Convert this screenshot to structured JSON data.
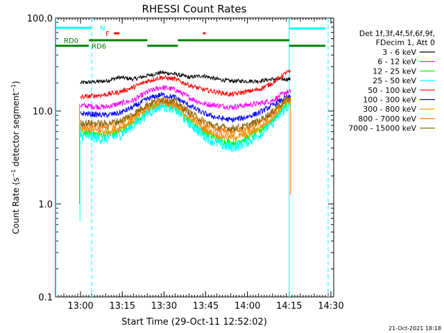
{
  "chart_data": {
    "type": "line",
    "title": "RHESSI Count Rates",
    "xlabel": "Start Time (29-Oct-11 12:52:02)",
    "ylabel_main": "Count Rate (s",
    "ylabel_sup1": "−1",
    "ylabel_mid": " detector segment",
    "ylabel_sup2": "−1",
    "ylabel_end": ")",
    "y_scale": "log",
    "ylim": [
      0.1,
      100.0
    ],
    "xlim_minutes": [
      "12:52",
      "14:32"
    ],
    "x_ticks": [
      {
        "t": 781,
        "label": "13:00"
      },
      {
        "t": 796,
        "label": "13:15"
      },
      {
        "t": 811,
        "label": "13:30"
      },
      {
        "t": 826,
        "label": "13:45"
      },
      {
        "t": 841,
        "label": "14:00"
      },
      {
        "t": 856,
        "label": "14:15"
      },
      {
        "t": 871,
        "label": "14:30"
      }
    ],
    "y_ticks": [
      {
        "v": 100,
        "label": "100.0"
      },
      {
        "v": 10,
        "label": "10.0"
      },
      {
        "v": 1,
        "label": "1.0"
      },
      {
        "v": 0.1,
        "label": "0.1"
      }
    ],
    "legend_title_1": "Det 1f,3f,4f,5f,6f,9f,",
    "legend_title_2": "FDecim 1, Att 0",
    "legend_placement": "right",
    "series": [
      {
        "name": "3 - 6 keV",
        "color": "#000000",
        "x": [
          "13:00",
          "13:10",
          "13:15",
          "13:20",
          "13:25",
          "13:30",
          "13:35",
          "13:40",
          "13:45",
          "13:50",
          "13:55",
          "14:00",
          "14:05",
          "14:10",
          "14:15"
        ],
        "values": [
          20,
          21,
          23,
          22,
          24,
          26,
          25,
          23,
          24,
          22,
          21,
          21,
          21,
          22,
          22
        ]
      },
      {
        "name": "6 - 12 keV",
        "color": "#ff00ff",
        "x": [
          "13:00",
          "13:10",
          "13:15",
          "13:20",
          "13:25",
          "13:30",
          "13:35",
          "13:40",
          "13:45",
          "13:50",
          "13:55",
          "14:00",
          "14:05",
          "14:10",
          "14:15"
        ],
        "values": [
          11.5,
          11,
          12,
          13,
          16,
          18,
          17,
          14,
          12,
          11.5,
          11,
          11.5,
          12,
          13,
          16
        ]
      },
      {
        "name": "12 - 25 keV",
        "color": "#00ff00",
        "x": [
          "13:00",
          "13:10",
          "13:15",
          "13:20",
          "13:25",
          "13:30",
          "13:35",
          "13:40",
          "13:45",
          "13:50",
          "13:55",
          "14:00",
          "14:05",
          "14:10",
          "14:15"
        ],
        "values": [
          6,
          5.5,
          6,
          7.5,
          10,
          12,
          11,
          8,
          6,
          5,
          4.5,
          5,
          6,
          8,
          12
        ]
      },
      {
        "name": "25 - 50 keV",
        "color": "#00ffff",
        "x": [
          "13:00",
          "13:10",
          "13:15",
          "13:20",
          "13:25",
          "13:30",
          "13:35",
          "13:40",
          "13:45",
          "13:50",
          "13:55",
          "14:00",
          "14:05",
          "14:10",
          "14:15"
        ],
        "values": [
          5.5,
          5,
          5.5,
          7,
          9.5,
          11.5,
          10.5,
          7.5,
          5.5,
          4.5,
          4,
          4.5,
          5.5,
          7.5,
          11
        ]
      },
      {
        "name": "50 - 100 keV",
        "color": "#ff0000",
        "x": [
          "13:00",
          "13:10",
          "13:15",
          "13:20",
          "13:25",
          "13:30",
          "13:35",
          "13:40",
          "13:45",
          "13:50",
          "13:55",
          "14:00",
          "14:05",
          "14:10",
          "14:15"
        ],
        "values": [
          14,
          15,
          16,
          18,
          21,
          23,
          22,
          19,
          17,
          16,
          15,
          16,
          17,
          20,
          26
        ]
      },
      {
        "name": "100 - 300 keV",
        "color": "#0000ff",
        "x": [
          "13:00",
          "13:10",
          "13:15",
          "13:20",
          "13:25",
          "13:30",
          "13:35",
          "13:40",
          "13:45",
          "13:50",
          "13:55",
          "14:00",
          "14:05",
          "14:10",
          "14:15"
        ],
        "values": [
          9.5,
          9,
          9.5,
          11,
          13.5,
          15,
          14,
          11.5,
          9.5,
          8.5,
          8,
          8.5,
          9.5,
          11.5,
          14
        ]
      },
      {
        "name": "300 - 800 keV",
        "color": "#ff8c00",
        "x": [
          "13:00",
          "13:10",
          "13:15",
          "13:20",
          "13:25",
          "13:30",
          "13:35",
          "13:40",
          "13:45",
          "13:50",
          "13:55",
          "14:00",
          "14:05",
          "14:10",
          "14:15"
        ],
        "values": [
          6.5,
          6,
          6.5,
          8,
          10.5,
          12.5,
          11.5,
          8.5,
          6.5,
          5.5,
          5.2,
          5.5,
          6.5,
          8.5,
          12.5
        ]
      },
      {
        "name": "800 - 7000 keV",
        "color": "#ff7f00",
        "x": [
          "13:00",
          "13:10",
          "13:15",
          "13:20",
          "13:25",
          "13:30",
          "13:35",
          "13:40",
          "13:45",
          "13:50",
          "13:55",
          "14:00",
          "14:05",
          "14:10",
          "14:15"
        ],
        "values": [
          7,
          6.8,
          7.3,
          8.8,
          11.3,
          13,
          12,
          9.3,
          7.3,
          6.3,
          6,
          6.3,
          7.3,
          9.3,
          13
        ]
      },
      {
        "name": "7000 - 15000 keV",
        "color": "#8b6914",
        "x": [
          "13:00",
          "13:10",
          "13:15",
          "13:20",
          "13:25",
          "13:30",
          "13:35",
          "13:40",
          "13:45",
          "13:50",
          "13:55",
          "14:00",
          "14:05",
          "14:10",
          "14:15"
        ],
        "values": [
          7.5,
          7.3,
          7.8,
          9.3,
          11.8,
          13.5,
          12.5,
          9.8,
          7.8,
          6.8,
          6.5,
          6.8,
          7.8,
          9.8,
          13.5
        ]
      }
    ],
    "flags": [
      {
        "label": "N",
        "color": "#00ffff"
      },
      {
        "label": "F",
        "color": "#ff0000"
      },
      {
        "label": "RD0",
        "color": "#008000"
      },
      {
        "label": "RD6",
        "color": "#008000"
      }
    ],
    "footer_timestamp": "21-Oct-2021 18:18"
  }
}
